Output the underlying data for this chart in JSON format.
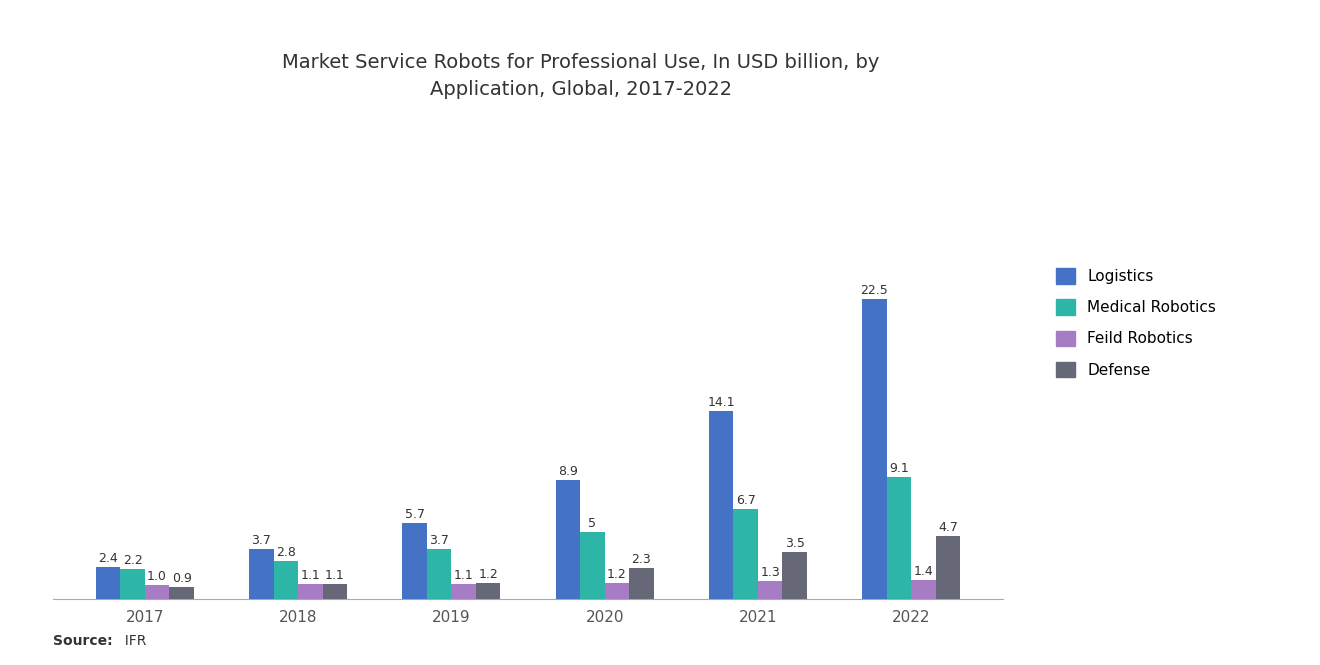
{
  "title": "Market Service Robots for Professional Use, In USD billion, by\nApplication, Global, 2017-2022",
  "years": [
    "2017",
    "2018",
    "2019",
    "2020",
    "2021",
    "2022"
  ],
  "series": {
    "Logistics": [
      2.4,
      3.7,
      5.7,
      8.9,
      14.1,
      22.5
    ],
    "Medical Robotics": [
      2.2,
      2.8,
      3.7,
      5.0,
      6.7,
      9.1
    ],
    "Feild Robotics": [
      1.0,
      1.1,
      1.1,
      1.2,
      1.3,
      1.4
    ],
    "Defense": [
      0.9,
      1.1,
      1.2,
      2.3,
      3.5,
      4.7
    ]
  },
  "colors": {
    "Logistics": "#4472C4",
    "Medical Robotics": "#2DB5A8",
    "Feild Robotics": "#A67CC4",
    "Defense": "#666878"
  },
  "bar_labels": {
    "Logistics": [
      "2.4",
      "3.7",
      "5.7",
      "8.9",
      "14.1",
      "22.5"
    ],
    "Medical Robotics": [
      "2.2",
      "2.8",
      "3.7",
      "5",
      "6.7",
      "9.1"
    ],
    "Feild Robotics": [
      "1.0",
      "1.1",
      "1.1",
      "1.2",
      "1.3",
      "1.4"
    ],
    "Defense": [
      "0.9",
      "1.1",
      "1.2",
      "2.3",
      "3.5",
      "4.7"
    ]
  },
  "source_text_bold": "Source:",
  "source_text_normal": "  IFR",
  "background_color": "#FFFFFF",
  "title_fontsize": 14,
  "label_fontsize": 9,
  "legend_fontsize": 11,
  "axis_label_fontsize": 11
}
